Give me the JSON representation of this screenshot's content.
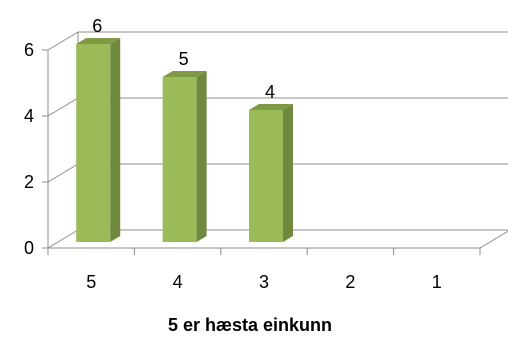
{
  "chart_data": {
    "type": "bar",
    "style": "3d-column",
    "categories": [
      "5",
      "4",
      "3",
      "2",
      "1"
    ],
    "values": [
      6,
      5,
      4,
      0,
      0
    ],
    "data_labels": [
      "6",
      "5",
      "4",
      "",
      ""
    ],
    "xlabel": "5 er hæsta einkunn",
    "ylabel": "",
    "ylim": [
      0,
      6
    ],
    "yticks": [
      "0",
      "2",
      "4",
      "6"
    ],
    "grid": true,
    "legend": "none",
    "colors": {
      "bar_front": "#9bbb59",
      "bar_side": "#71893f",
      "bar_top": "#7e9a46",
      "grid": "#8c8c8c",
      "floor": "#8c8c8c"
    }
  }
}
